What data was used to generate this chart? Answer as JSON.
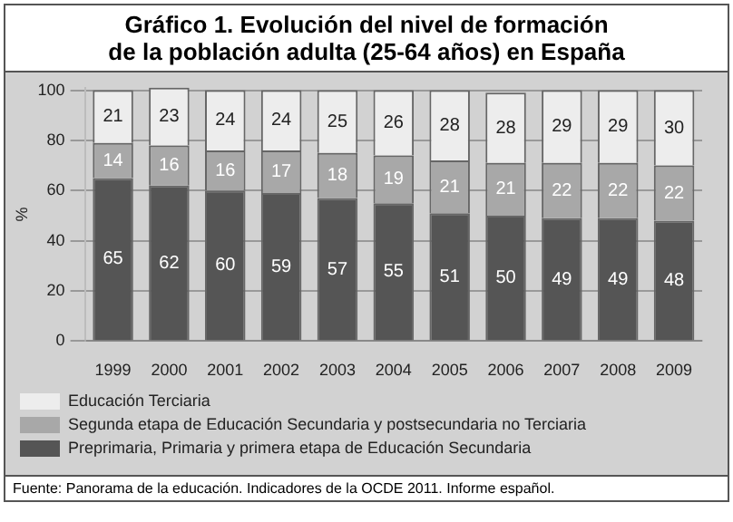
{
  "chart_data": {
    "type": "bar",
    "title": "Gráfico 1. Evolución del nivel de formación\nde la población adulta (25-64 años) en España",
    "ylabel": "%",
    "categories": [
      "1999",
      "2000",
      "2001",
      "2002",
      "2003",
      "2004",
      "2005",
      "2006",
      "2007",
      "2008",
      "2009"
    ],
    "series": [
      {
        "name": "Preprimaria, Primaria y primera etapa de Educación Secundaria",
        "color": "#555555",
        "values": [
          65,
          62,
          60,
          59,
          57,
          55,
          51,
          50,
          49,
          49,
          48
        ]
      },
      {
        "name": "Segunda etapa de Educación Secundaria y postsecundaria no Terciaria",
        "color": "#a8a8a8",
        "values": [
          14,
          16,
          16,
          17,
          18,
          19,
          21,
          21,
          22,
          22,
          22
        ]
      },
      {
        "name": "Educación Terciaria",
        "color": "#ededed",
        "values": [
          21,
          23,
          24,
          24,
          25,
          26,
          28,
          28,
          29,
          29,
          30
        ]
      }
    ],
    "stacked": true,
    "ylim": [
      0,
      101
    ],
    "yticks": [
      0,
      20,
      40,
      60,
      80,
      100
    ],
    "grid": "y",
    "legend": "bottom",
    "data_labels": true,
    "annotations": [
      "Fuente: Panorama de la educación. Indicadores de la OCDE 2011. Informe español."
    ]
  }
}
